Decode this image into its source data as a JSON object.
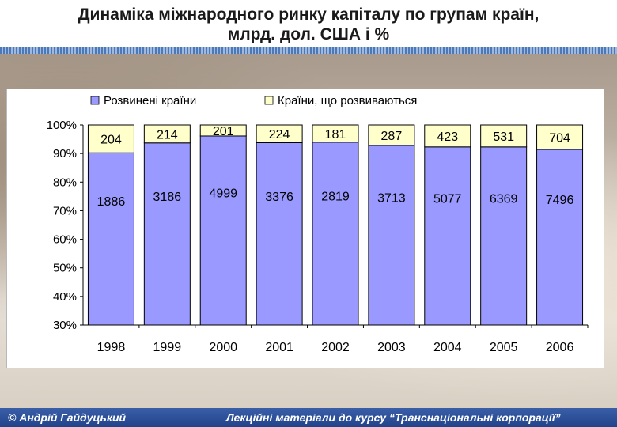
{
  "slide": {
    "title_line1": "Динаміка міжнародного ринку капіталу по групам країн,",
    "title_line2": "млрд. дол. США і %"
  },
  "footer": {
    "author": "© Андрій Гайдуцький",
    "course": "Лекційні матеріали до курсу “Транснаціональні корпорації”"
  },
  "chart_data": {
    "type": "bar",
    "stacking": "percent",
    "categories": [
      "1998",
      "1999",
      "2000",
      "2001",
      "2002",
      "2003",
      "2004",
      "2005",
      "2006"
    ],
    "series": [
      {
        "name": "Розвинені країни",
        "values": [
          1886,
          3186,
          4999,
          3376,
          2819,
          3713,
          5077,
          6369,
          7496
        ],
        "color": "#9999ff"
      },
      {
        "name": "Країни, що розвиваються",
        "values": [
          204,
          214,
          201,
          224,
          181,
          287,
          423,
          531,
          704
        ],
        "color": "#ffffcc"
      }
    ],
    "ylim": [
      30,
      100
    ],
    "yticks": [
      "30%",
      "40%",
      "50%",
      "60%",
      "70%",
      "80%",
      "90%",
      "100%"
    ],
    "grid": false,
    "legend_position": "top"
  }
}
